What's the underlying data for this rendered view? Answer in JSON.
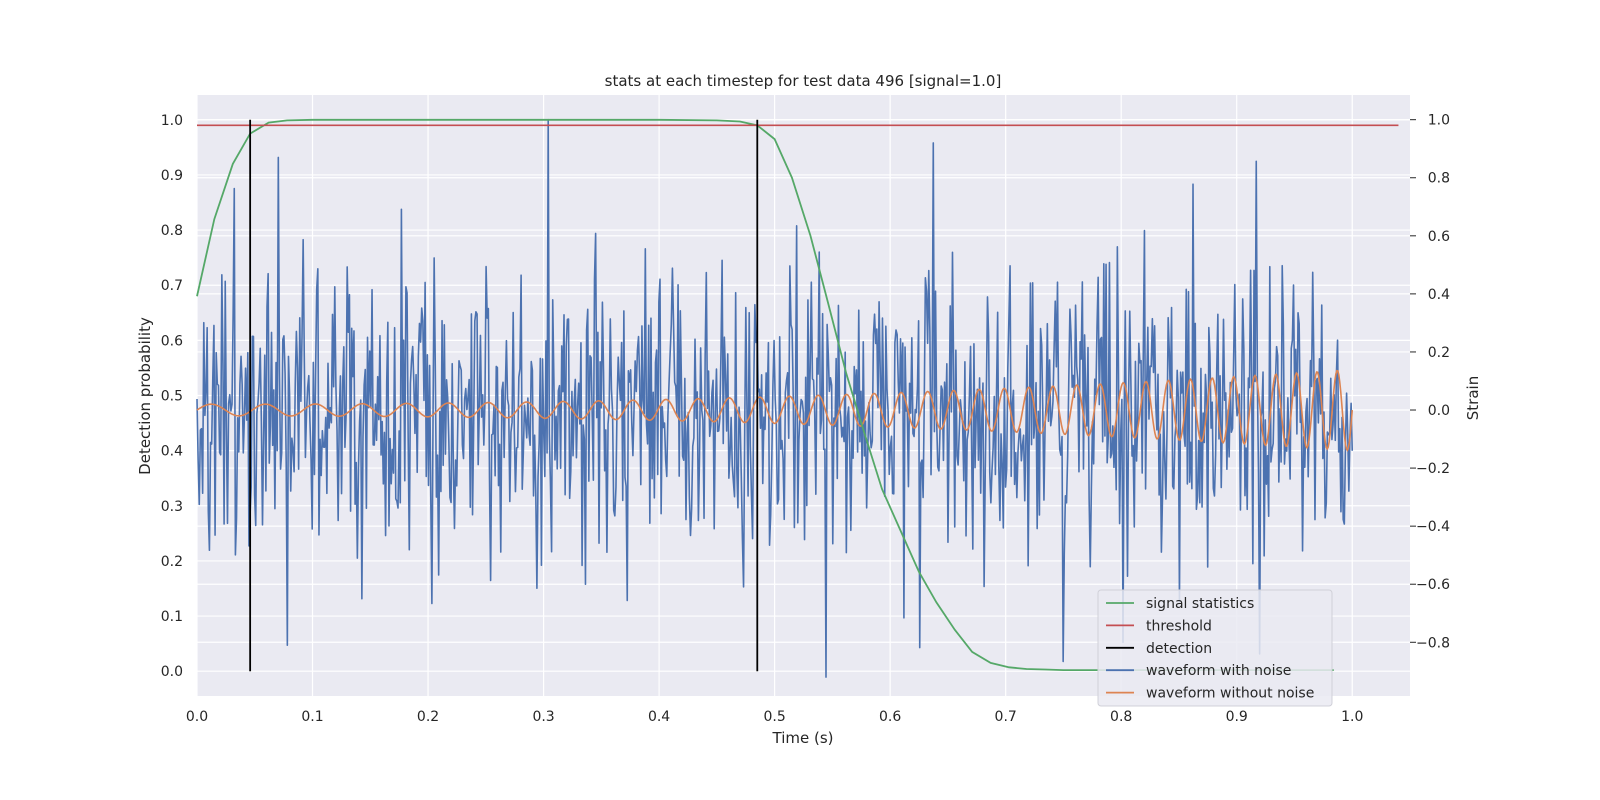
{
  "chart_data": {
    "type": "line",
    "title": "stats at each timestep for test data 496 [signal=1.0]",
    "xlabel": "Time (s)",
    "ylabel": "Detection probability",
    "y2label": "Strain",
    "xlim": [
      0.0,
      1.05
    ],
    "ylim": [
      -0.045,
      1.045
    ],
    "y2lim": [
      -0.985,
      1.085
    ],
    "grid": true,
    "legend_position": "bottom-right",
    "x_ticks": [
      "0.0",
      "0.1",
      "0.2",
      "0.3",
      "0.4",
      "0.5",
      "0.6",
      "0.7",
      "0.8",
      "0.9",
      "1.0"
    ],
    "y_ticks": [
      "0.0",
      "0.1",
      "0.2",
      "0.3",
      "0.4",
      "0.5",
      "0.6",
      "0.7",
      "0.8",
      "0.9",
      "1.0"
    ],
    "y2_ticks": [
      "−0.8",
      "−0.6",
      "−0.4",
      "−0.2",
      "0.0",
      "0.2",
      "0.4",
      "0.6",
      "0.8",
      "1.0"
    ],
    "colors": {
      "signal_statistics": "#55a868",
      "threshold": "#c44e52",
      "detection": "#000000",
      "waveform_noise": "#4c72b0",
      "waveform_clean": "#dd8452",
      "axes_bg": "#eaeaf2",
      "grid": "#ffffff"
    },
    "legend": [
      {
        "key": "signal_statistics",
        "label": "signal statistics"
      },
      {
        "key": "threshold",
        "label": "threshold"
      },
      {
        "key": "detection",
        "label": "detection"
      },
      {
        "key": "waveform_noise",
        "label": "waveform with noise"
      },
      {
        "key": "waveform_clean",
        "label": "waveform without noise"
      }
    ],
    "threshold": {
      "x": [
        0.0,
        1.04
      ],
      "y": 0.99
    },
    "detections": [
      0.046,
      0.485
    ],
    "series": [
      {
        "key": "signal_statistics",
        "axis": "left",
        "x": [
          0.0,
          0.015,
          0.031,
          0.046,
          0.062,
          0.078,
          0.1,
          0.2,
          0.3,
          0.4,
          0.45,
          0.47,
          0.485,
          0.5,
          0.515,
          0.531,
          0.546,
          0.562,
          0.578,
          0.593,
          0.609,
          0.625,
          0.64,
          0.656,
          0.671,
          0.687,
          0.703,
          0.718,
          0.734,
          0.75,
          0.8,
          0.85,
          0.9,
          0.95,
          0.984
        ],
        "y": [
          0.68,
          0.82,
          0.92,
          0.975,
          0.995,
          0.999,
          1.0,
          1.0,
          1.0,
          1.0,
          0.999,
          0.997,
          0.99,
          0.965,
          0.895,
          0.79,
          0.67,
          0.54,
          0.43,
          0.33,
          0.255,
          0.18,
          0.125,
          0.075,
          0.035,
          0.015,
          0.007,
          0.004,
          0.003,
          0.002,
          0.002,
          0.002,
          0.002,
          0.002,
          0.002
        ]
      },
      {
        "key": "waveform_clean",
        "axis": "right",
        "model": "chirp",
        "t_range": [
          0.0,
          1.0
        ],
        "amplitude_start": 0.02,
        "amplitude_end": 0.14,
        "frequency_start_hz": 20,
        "frequency_end_hz": 58
      },
      {
        "key": "waveform_noise",
        "axis": "right",
        "model": "noise_plus_clean",
        "t_range": [
          0.0,
          1.0
        ],
        "samples": 1024,
        "noise_sigma": 0.25,
        "range": [
          -0.92,
          1.0
        ],
        "peaks": [
          {
            "x": 0.304,
            "y": 1.0
          },
          {
            "x": 0.07,
            "y": 0.87
          },
          {
            "x": 0.637,
            "y": 0.92
          },
          {
            "x": 0.544,
            "y": -0.92
          },
          {
            "x": 0.078,
            "y": -0.81
          },
          {
            "x": 0.92,
            "y": -0.84
          },
          {
            "x": 0.802,
            "y": -0.8
          }
        ]
      }
    ]
  }
}
